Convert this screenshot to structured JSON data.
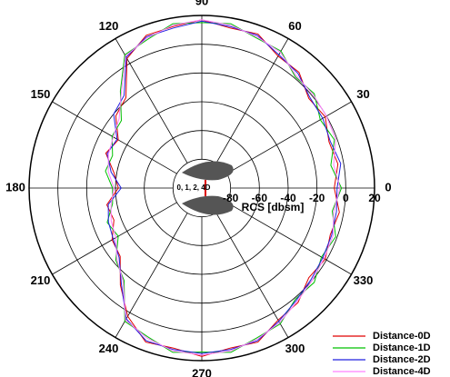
{
  "chart_data": {
    "type": "polar",
    "radial_label": "RCS [dbsm]",
    "annotation": "0, 1, 2, 4D",
    "theta": [
      0,
      10,
      20,
      30,
      40,
      50,
      60,
      70,
      80,
      90,
      100,
      110,
      120,
      130,
      140,
      150,
      160,
      170,
      180,
      190,
      200,
      210,
      220,
      230,
      240,
      250,
      260,
      270,
      280,
      290,
      300,
      310,
      320,
      330,
      340,
      350
    ],
    "thetaticks": [
      0,
      30,
      60,
      90,
      120,
      150,
      180,
      210,
      240,
      270,
      300,
      330
    ],
    "rlim": [
      -100,
      20
    ],
    "rticks": [
      -80,
      -60,
      -40,
      -20,
      0,
      20
    ],
    "grid": true,
    "legend": "lower right",
    "series": [
      {
        "name": "Distance-0D",
        "color": "#e00000",
        "values": [
          -8,
          -4,
          -6,
          -1,
          -3,
          5,
          6,
          14,
          13,
          17,
          14,
          13,
          4,
          -18,
          -22,
          -33,
          -29,
          -38,
          -42,
          -33,
          -35,
          -28,
          -26,
          -12,
          3,
          14,
          13,
          17,
          13,
          14,
          6,
          4,
          -3,
          -1,
          -5,
          -3
        ]
      },
      {
        "name": "Distance-1D",
        "color": "#00c000",
        "values": [
          -3,
          -9,
          -2,
          -5,
          2,
          1,
          10,
          11,
          16,
          15,
          16,
          10,
          7,
          -12,
          -27,
          -28,
          -34,
          -32,
          -38,
          -37,
          -30,
          -33,
          -22,
          -16,
          7,
          10,
          16,
          14,
          16,
          11,
          9,
          1,
          2,
          -4,
          -1,
          -8
        ]
      },
      {
        "name": "Distance-2D",
        "color": "#2020e0",
        "values": [
          -6,
          -2,
          -5,
          -3,
          -2,
          4,
          7,
          13,
          14,
          16,
          13,
          12,
          5,
          -16,
          -20,
          -32,
          -30,
          -36,
          -44,
          -34,
          -31,
          -29,
          -25,
          -13,
          5,
          13,
          14,
          15,
          14,
          13,
          7,
          2,
          -1,
          -3,
          -4,
          -5
        ]
      },
      {
        "name": "Distance-4D",
        "color": "#ff80ff",
        "values": [
          -4,
          -7,
          -1,
          0,
          1,
          2,
          9,
          12,
          15,
          17,
          15,
          11,
          6,
          -13,
          -25,
          -29,
          -31,
          -34,
          -39,
          -36,
          -33,
          -31,
          -23,
          -15,
          6,
          11,
          15,
          16,
          15,
          12,
          8,
          3,
          0,
          -2,
          -3,
          -7
        ]
      }
    ]
  }
}
